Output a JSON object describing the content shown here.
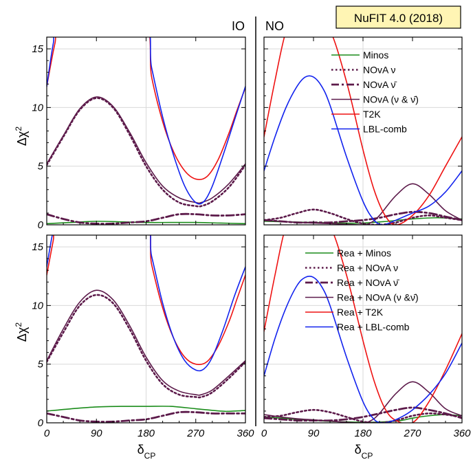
{
  "title_badge": "NuFIT 4.0 (2018)",
  "colors": {
    "minos": "#1a8c1a",
    "nova": "#5c1a4a",
    "t2k": "#ee1111",
    "lbl": "#1122ee",
    "badge_bg": "#fff5b4"
  },
  "axes": {
    "xlabel_main": "δ",
    "xlabel_sub": "CP",
    "ylabel_main": "Δχ",
    "ylabel_sup": "2",
    "xlim": [
      0,
      360
    ],
    "ylim": [
      0,
      16
    ],
    "xticks": [
      0,
      90,
      180,
      270,
      360
    ],
    "yticks": [
      0,
      5,
      10,
      15
    ],
    "grid_x": [
      180
    ],
    "grid_y": [
      5,
      10,
      15
    ]
  },
  "chart_data": [
    {
      "type": "line",
      "panel": "top-left",
      "corner_label": "IO",
      "legend": [],
      "series": [
        {
          "name": "Minos",
          "style": "minos",
          "x": [
            0,
            45,
            90,
            135,
            180,
            225,
            270,
            315,
            360
          ],
          "y": [
            0.1,
            0.2,
            0.3,
            0.25,
            0.2,
            0.2,
            0.2,
            0.15,
            0.1
          ]
        },
        {
          "name": "NOvA ν",
          "style": "nova_nu",
          "x": [
            0,
            30,
            60,
            90,
            120,
            150,
            180,
            210,
            240,
            270,
            280,
            300,
            330,
            360
          ],
          "y": [
            5.1,
            7.5,
            9.8,
            10.8,
            10.0,
            7.7,
            5.0,
            3.0,
            1.9,
            1.6,
            1.6,
            2.0,
            3.2,
            5.1
          ]
        },
        {
          "name": "NOvA ν̄",
          "style": "nova_nubar",
          "x": [
            0,
            30,
            60,
            90,
            120,
            150,
            180,
            210,
            240,
            270,
            300,
            330,
            360
          ],
          "y": [
            0.9,
            0.5,
            0.2,
            0.1,
            0.1,
            0.2,
            0.3,
            0.6,
            0.9,
            0.9,
            0.8,
            0.8,
            0.9
          ]
        },
        {
          "name": "NOvA (ν & ν̄)",
          "style": "nova_both",
          "x": [
            0,
            30,
            60,
            90,
            120,
            150,
            180,
            210,
            240,
            270,
            280,
            300,
            330,
            360
          ],
          "y": [
            5.2,
            7.6,
            9.9,
            10.9,
            10.1,
            7.9,
            5.3,
            3.3,
            2.3,
            1.9,
            1.9,
            2.3,
            3.5,
            5.2
          ]
        },
        {
          "name": "T2K",
          "style": "t2k",
          "x": [
            0,
            15,
            30,
            170,
            190,
            210,
            230,
            250,
            270,
            290,
            310,
            330,
            345,
            360
          ],
          "y": [
            11.8,
            15.5,
            18,
            18,
            12.6,
            8.8,
            6.2,
            4.6,
            3.9,
            4.1,
            5.5,
            7.8,
            9.8,
            11.7
          ]
        },
        {
          "name": "LBL-comb",
          "style": "lbl",
          "x": [
            0,
            12,
            25,
            170,
            190,
            210,
            230,
            250,
            270,
            285,
            300,
            320,
            340,
            360
          ],
          "y": [
            11.8,
            15.5,
            18,
            18,
            13.4,
            9.2,
            5.9,
            3.3,
            1.9,
            2.0,
            3.3,
            6.0,
            8.9,
            11.8
          ]
        }
      ]
    },
    {
      "type": "line",
      "panel": "top-right",
      "corner_label": "NO",
      "legend": [
        "Minos",
        "NOvA ν",
        "NOvA ν̄",
        "NOvA (ν & ν̄)",
        "T2K",
        "LBL-comb"
      ],
      "series": [
        {
          "name": "Minos",
          "style": "minos",
          "x": [
            0,
            45,
            90,
            135,
            180,
            225,
            270,
            315,
            360
          ],
          "y": [
            0.3,
            0.25,
            0.2,
            0.15,
            0.15,
            0.3,
            0.5,
            0.6,
            0.5
          ]
        },
        {
          "name": "NOvA ν",
          "style": "nova_nu",
          "x": [
            0,
            30,
            60,
            90,
            120,
            150,
            180,
            210,
            240,
            270,
            300,
            330,
            360
          ],
          "y": [
            0.4,
            0.6,
            1.0,
            1.3,
            1.0,
            0.5,
            0.1,
            0.0,
            0.2,
            0.6,
            0.8,
            0.6,
            0.4
          ]
        },
        {
          "name": "NOvA ν̄",
          "style": "nova_nubar",
          "x": [
            0,
            30,
            60,
            90,
            120,
            150,
            180,
            210,
            240,
            270,
            300,
            330,
            360
          ],
          "y": [
            0.4,
            0.3,
            0.2,
            0.2,
            0.2,
            0.3,
            0.4,
            0.6,
            0.9,
            1.1,
            1.0,
            0.7,
            0.4
          ]
        },
        {
          "name": "NOvA (ν & ν̄)",
          "style": "nova_both",
          "x": [
            0,
            30,
            60,
            90,
            120,
            150,
            180,
            195,
            210,
            240,
            270,
            300,
            330,
            360
          ],
          "y": [
            0.4,
            0.3,
            0.2,
            0.15,
            0.1,
            0.05,
            0.0,
            0.2,
            0.8,
            2.5,
            3.5,
            2.6,
            1.2,
            0.4
          ]
        },
        {
          "name": "T2K",
          "style": "t2k",
          "x": [
            0,
            20,
            40,
            60,
            90,
            120,
            150,
            180,
            200,
            220,
            240,
            270,
            300,
            330,
            360
          ],
          "y": [
            7.5,
            12.3,
            16.5,
            18,
            18,
            16.6,
            12.2,
            6.4,
            3.0,
            0.8,
            0.0,
            0.8,
            2.5,
            5.0,
            7.5
          ]
        },
        {
          "name": "LBL-comb",
          "style": "lbl",
          "x": [
            0,
            20,
            40,
            60,
            75,
            90,
            105,
            120,
            150,
            180,
            200,
            215,
            225,
            240,
            270,
            300,
            330,
            360
          ],
          "y": [
            4.6,
            7.5,
            10.0,
            11.8,
            12.6,
            12.6,
            11.8,
            10.2,
            5.8,
            2.0,
            0.4,
            0.0,
            0.1,
            0.4,
            1.0,
            1.6,
            2.8,
            4.6
          ]
        }
      ]
    },
    {
      "type": "line",
      "panel": "bottom-left",
      "corner_label": "",
      "legend": [],
      "series": [
        {
          "name": "Rea + Minos",
          "style": "minos",
          "x": [
            0,
            45,
            90,
            135,
            180,
            225,
            270,
            315,
            330,
            360
          ],
          "y": [
            1.0,
            1.2,
            1.35,
            1.4,
            1.4,
            1.4,
            1.2,
            1.0,
            0.98,
            1.05
          ]
        },
        {
          "name": "Rea + NOvA ν",
          "style": "nova_nu",
          "x": [
            0,
            30,
            60,
            90,
            120,
            150,
            180,
            210,
            240,
            270,
            280,
            300,
            330,
            360
          ],
          "y": [
            5.2,
            7.7,
            10.0,
            10.9,
            10.2,
            8.0,
            5.3,
            3.3,
            2.4,
            2.2,
            2.2,
            2.6,
            3.8,
            5.2
          ]
        },
        {
          "name": "Rea + NOvA ν̄",
          "style": "nova_nubar",
          "x": [
            0,
            30,
            60,
            90,
            120,
            150,
            180,
            210,
            240,
            270,
            300,
            330,
            360
          ],
          "y": [
            0.8,
            0.5,
            0.2,
            0.1,
            0.1,
            0.2,
            0.3,
            0.6,
            0.9,
            0.9,
            0.8,
            0.8,
            0.8
          ]
        },
        {
          "name": "Rea + NOvA (ν & ν̄)",
          "style": "nova_both",
          "x": [
            0,
            30,
            60,
            90,
            120,
            150,
            180,
            210,
            240,
            270,
            280,
            300,
            330,
            360
          ],
          "y": [
            5.3,
            8.0,
            10.3,
            11.3,
            10.5,
            8.3,
            5.6,
            3.6,
            2.7,
            2.4,
            2.4,
            2.8,
            4.0,
            5.3
          ]
        },
        {
          "name": "Rea + T2K",
          "style": "t2k",
          "x": [
            0,
            12,
            22,
            170,
            190,
            210,
            230,
            250,
            270,
            290,
            310,
            330,
            345,
            360
          ],
          "y": [
            12.6,
            15.6,
            18,
            18,
            13.5,
            9.8,
            7.2,
            5.6,
            5.0,
            5.2,
            6.5,
            8.6,
            10.6,
            12.6
          ]
        },
        {
          "name": "Rea + LBL-comb",
          "style": "lbl",
          "x": [
            0,
            10,
            20,
            170,
            190,
            210,
            230,
            250,
            270,
            285,
            300,
            320,
            340,
            360
          ],
          "y": [
            13.3,
            16.0,
            18,
            18,
            14.2,
            10.2,
            7.2,
            5.3,
            4.5,
            4.6,
            5.6,
            8.0,
            10.8,
            13.3
          ]
        }
      ]
    },
    {
      "type": "line",
      "panel": "bottom-right",
      "corner_label": "",
      "legend": [
        "Rea + Minos",
        "Rea + NOvA ν",
        "Rea + NOvA ν̄",
        "Rea + NOvA (ν &ν̄)",
        "Rea + T2K",
        "Rea + LBL-comb"
      ],
      "series": [
        {
          "name": "Rea + Minos",
          "style": "minos",
          "x": [
            0,
            45,
            90,
            135,
            180,
            200,
            225,
            250,
            270,
            300,
            330,
            360
          ],
          "y": [
            0.5,
            0.35,
            0.2,
            0.1,
            0.05,
            0.05,
            0.1,
            0.2,
            0.4,
            0.6,
            0.7,
            0.6
          ]
        },
        {
          "name": "Rea + NOvA ν",
          "style": "nova_nu",
          "x": [
            0,
            30,
            60,
            90,
            120,
            150,
            180,
            210,
            240,
            270,
            300,
            330,
            360
          ],
          "y": [
            0.5,
            0.6,
            0.9,
            1.1,
            0.9,
            0.5,
            0.1,
            0.0,
            0.2,
            0.6,
            0.8,
            0.7,
            0.5
          ]
        },
        {
          "name": "Rea + NOvA ν̄",
          "style": "nova_nubar",
          "x": [
            0,
            30,
            60,
            90,
            120,
            150,
            180,
            210,
            240,
            270,
            300,
            330,
            360
          ],
          "y": [
            0.4,
            0.3,
            0.2,
            0.2,
            0.2,
            0.3,
            0.5,
            0.8,
            1.1,
            1.3,
            1.1,
            0.8,
            0.4
          ]
        },
        {
          "name": "Rea + NOvA (ν &ν̄)",
          "style": "nova_both",
          "x": [
            0,
            30,
            60,
            90,
            120,
            150,
            180,
            195,
            210,
            240,
            270,
            300,
            330,
            360
          ],
          "y": [
            0.7,
            0.5,
            0.35,
            0.25,
            0.15,
            0.05,
            0.0,
            0.2,
            0.8,
            2.5,
            3.5,
            2.6,
            1.2,
            0.6
          ]
        },
        {
          "name": "Rea + T2K",
          "style": "t2k",
          "x": [
            0,
            20,
            40,
            60,
            90,
            120,
            150,
            180,
            200,
            220,
            240,
            270,
            300,
            330,
            360
          ],
          "y": [
            7.8,
            12.6,
            16.8,
            18,
            18,
            16.8,
            12.6,
            7.0,
            3.6,
            1.2,
            0.2,
            0.0,
            1.8,
            4.5,
            7.6
          ]
        },
        {
          "name": "Rea + LBL-comb",
          "style": "lbl",
          "x": [
            0,
            20,
            40,
            60,
            75,
            90,
            105,
            120,
            150,
            180,
            200,
            215,
            230,
            250,
            270,
            300,
            330,
            360
          ],
          "y": [
            4.0,
            7.2,
            9.8,
            11.7,
            12.4,
            12.4,
            11.6,
            10.0,
            5.6,
            1.8,
            0.3,
            0.0,
            0.1,
            0.5,
            1.1,
            2.4,
            4.2,
            6.8
          ]
        }
      ]
    }
  ]
}
